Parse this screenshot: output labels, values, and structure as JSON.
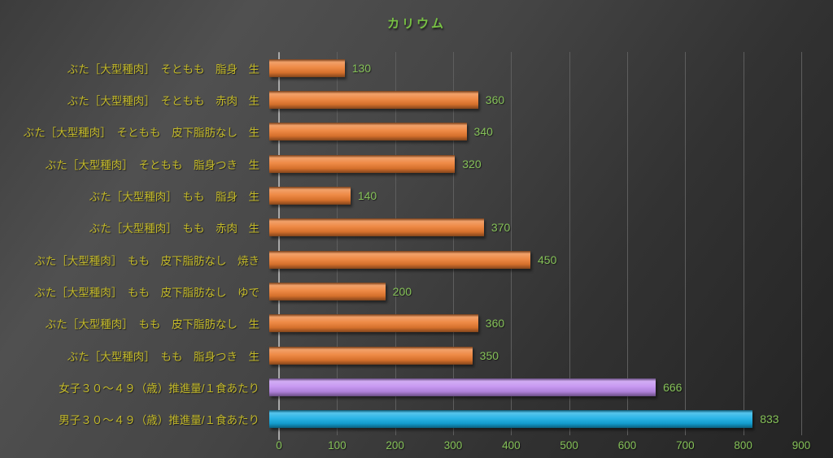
{
  "title": "カリウム",
  "colors": {
    "title": "#77c043",
    "category_label": "#c3b929",
    "value_label": "#85c158",
    "tick_label": "#85c158",
    "gridline": "#5e5e5e",
    "axis_line": "#a8a8a8"
  },
  "chart_data": {
    "type": "bar",
    "orientation": "horizontal",
    "title": "カリウム",
    "xlabel": "",
    "ylabel": "",
    "xlim": [
      0,
      900
    ],
    "x_ticks": [
      0,
      100,
      200,
      300,
      400,
      500,
      600,
      700,
      800,
      900
    ],
    "grid": true,
    "legend": false,
    "categories": [
      "ぶた［大型種肉］　そともも　脂身　生",
      "ぶた［大型種肉］　そともも　赤肉　生",
      "ぶた［大型種肉］　そともも　皮下脂肪なし　生",
      "ぶた［大型種肉］　そともも　脂身つき　生",
      "ぶた［大型種肉］　もも　脂身　生",
      "ぶた［大型種肉］　もも　赤肉　生",
      "ぶた［大型種肉］　もも　皮下脂肪なし　焼き",
      "ぶた［大型種肉］　もも　皮下脂肪なし　ゆで",
      "ぶた［大型種肉］　もも　皮下脂肪なし　生",
      "ぶた［大型種肉］　もも　脂身つき　生",
      "女子３０～４９（歳）推進量/１食あたり",
      "男子３０～４９（歳）推進量/１食あたり"
    ],
    "values": [
      130,
      360,
      340,
      320,
      140,
      370,
      450,
      200,
      360,
      350,
      666,
      833
    ],
    "data_labels": [
      "130",
      "360",
      "340",
      "320",
      "140",
      "370",
      "450",
      "200",
      "360",
      "350",
      "666",
      "833"
    ],
    "bar_colors": [
      "#ed7d31",
      "#ed7d31",
      "#ed7d31",
      "#ed7d31",
      "#ed7d31",
      "#ed7d31",
      "#ed7d31",
      "#ed7d31",
      "#ed7d31",
      "#ed7d31",
      "#c18ef0",
      "#15ade4"
    ]
  }
}
